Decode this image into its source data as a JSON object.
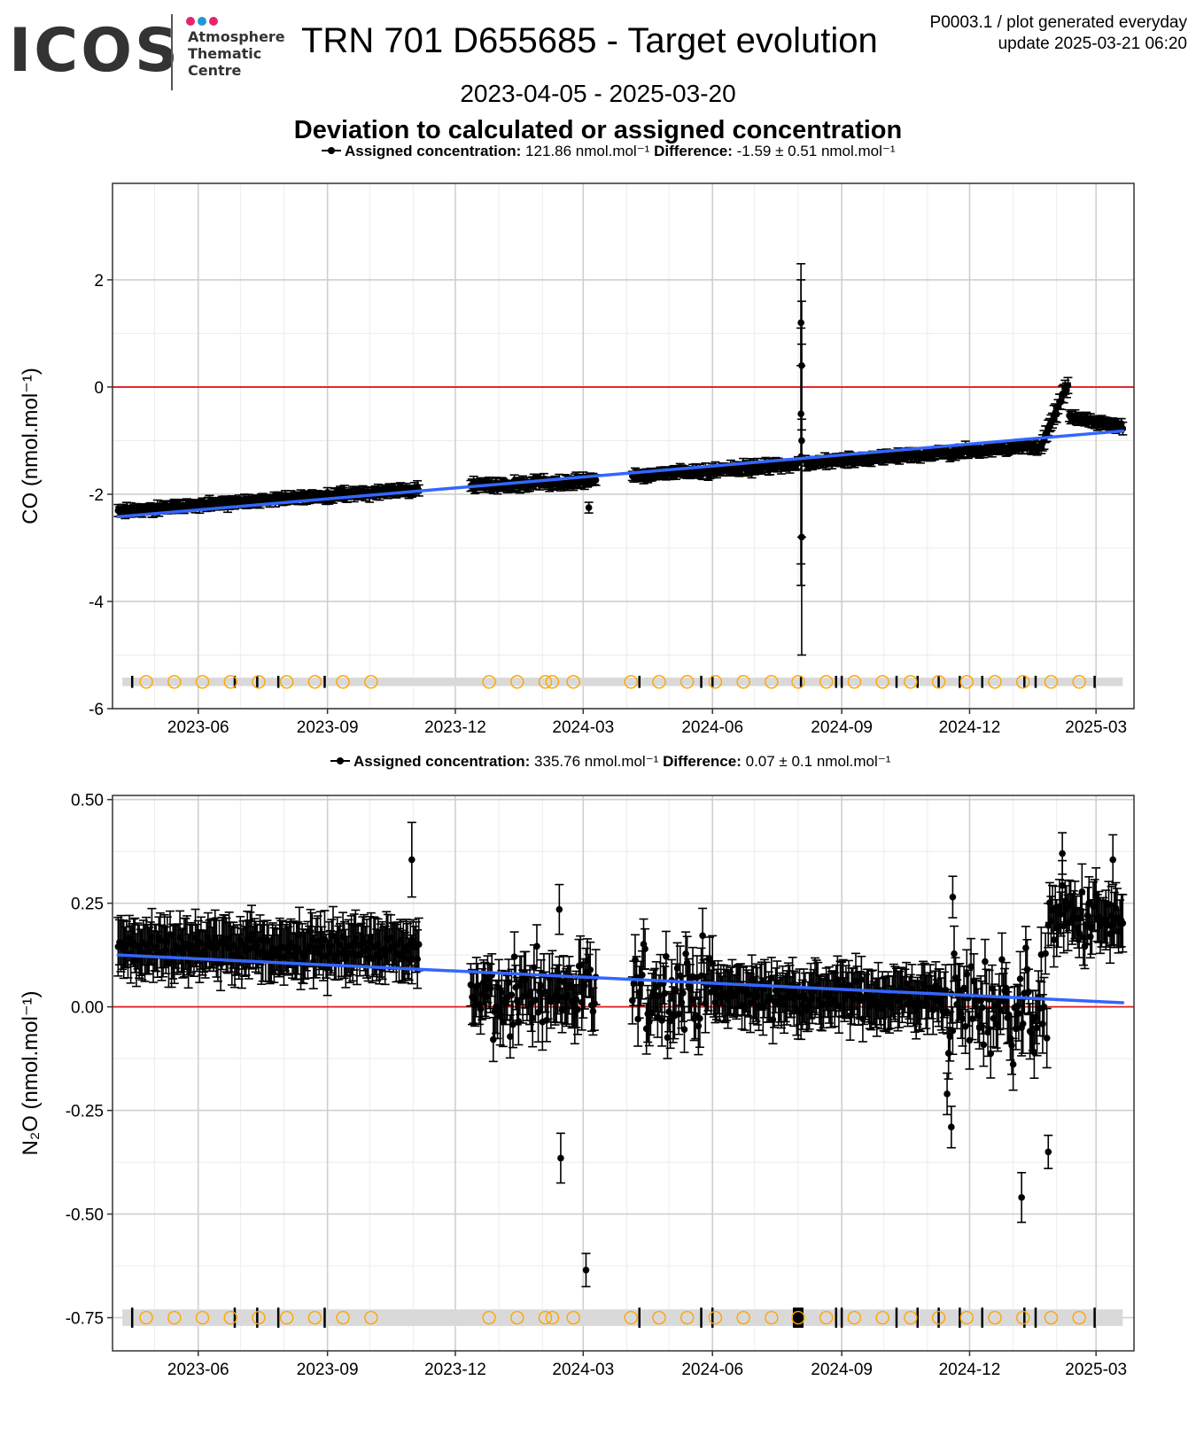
{
  "header": {
    "logo_text": "ICOS",
    "logo_sub": [
      "Atmosphere",
      "Thematic",
      "Centre"
    ],
    "logo_dot_colors": [
      "#e5256f",
      "#1c9ad6",
      "#e5256f"
    ],
    "title": "TRN 701 D655685 - Target evolution",
    "date_range": "2023-04-05 - 2025-03-20",
    "plot_info_line1": "P0003.1 / plot generated everyday",
    "plot_info_line2": "update  2025-03-21 06:20",
    "subtitle": "Deviation to calculated or assigned concentration"
  },
  "chart_data": [
    {
      "type": "scatter",
      "ylabel": "CO (nmol.mol⁻¹)",
      "legend": {
        "assigned_label": "Assigned concentration:",
        "assigned_value": "121.86 nmol.mol⁻¹",
        "difference_label": "Difference:",
        "difference_value": "-1.59 ± 0.51 nmol.mol⁻¹"
      },
      "xlim": [
        "2023-04-01",
        "2025-03-28"
      ],
      "ylim": [
        -6.0,
        3.8
      ],
      "x_ticks": [
        "2023-06",
        "2023-09",
        "2023-12",
        "2024-03",
        "2024-06",
        "2024-09",
        "2024-12",
        "2025-03"
      ],
      "y_ticks": [
        -6,
        -4,
        -2,
        0,
        2
      ],
      "y_tick_labels": [
        "-6",
        "-4",
        "-2",
        "0",
        "2"
      ],
      "reference_line": 0,
      "trend": {
        "x": [
          "2023-04-05",
          "2025-03-20"
        ],
        "y": [
          -2.42,
          -0.82
        ]
      },
      "segments": [
        {
          "start": "2023-04-05",
          "end": "2023-11-05",
          "y_start": -2.32,
          "y_end": -1.9,
          "noise": 0.05,
          "err": 0.1
        },
        {
          "start": "2023-12-12",
          "end": "2024-03-10",
          "y_start": -1.85,
          "y_end": -1.75,
          "noise": 0.07,
          "err": 0.1
        },
        {
          "start": "2024-04-05",
          "end": "2024-08-01",
          "y_start": -1.65,
          "y_end": -1.45,
          "noise": 0.06,
          "err": 0.1
        },
        {
          "start": "2024-08-06",
          "end": "2025-01-20",
          "y_start": -1.42,
          "y_end": -1.1,
          "noise": 0.05,
          "err": 0.1
        },
        {
          "start": "2025-01-21",
          "end": "2025-02-09",
          "y_start": -1.1,
          "y_end": 0.05,
          "noise": 0.06,
          "err": 0.15
        },
        {
          "start": "2025-02-10",
          "end": "2025-03-20",
          "y_start": -0.55,
          "y_end": -0.75,
          "noise": 0.05,
          "err": 0.1
        }
      ],
      "dips": [
        {
          "x": "2024-03-05",
          "y": -2.25,
          "err": 0.1
        }
      ],
      "spike": {
        "x": "2024-08-03",
        "y": [
          -0.5,
          0.4,
          -1.3,
          -2.8,
          1.2,
          -1.0
        ],
        "err": [
          2.8,
          1.2,
          2.4,
          2.2,
          0.8,
          1.8
        ]
      },
      "bar_band": [
        -5.58,
        -5.42
      ],
      "circles_x": [
        "2023-04-25",
        "2023-05-15",
        "2023-06-04",
        "2023-06-24",
        "2023-07-14",
        "2023-08-03",
        "2023-08-23",
        "2023-09-12",
        "2023-10-02",
        "2023-12-25",
        "2024-01-14",
        "2024-02-03",
        "2024-02-08",
        "2024-02-23",
        "2024-04-04",
        "2024-04-24",
        "2024-05-14",
        "2024-06-03",
        "2024-06-23",
        "2024-07-13",
        "2024-08-01",
        "2024-08-21",
        "2024-09-10",
        "2024-09-30",
        "2024-10-20",
        "2024-11-09",
        "2024-11-29",
        "2024-12-19",
        "2025-01-08",
        "2025-01-28",
        "2025-02-17"
      ],
      "ticks_x": [
        "2023-04-15",
        "2023-06-27",
        "2023-07-13",
        "2023-07-28",
        "2023-08-30",
        "2024-04-10",
        "2024-05-24",
        "2024-06-01",
        "2024-08-03",
        "2024-08-28",
        "2024-09-01",
        "2024-10-10",
        "2024-10-25",
        "2024-11-09",
        "2024-11-24",
        "2024-12-10",
        "2025-01-09",
        "2025-01-17",
        "2025-02-28"
      ]
    },
    {
      "type": "scatter",
      "ylabel": "N₂O (nmol.mol⁻¹)",
      "legend": {
        "assigned_label": "Assigned concentration:",
        "assigned_value": "335.76 nmol.mol⁻¹",
        "difference_label": "Difference:",
        "difference_value": "0.07 ± 0.1 nmol.mol⁻¹"
      },
      "xlim": [
        "2023-04-01",
        "2025-03-28"
      ],
      "ylim": [
        -0.83,
        0.51
      ],
      "x_ticks": [
        "2023-06",
        "2023-09",
        "2023-12",
        "2024-03",
        "2024-06",
        "2024-09",
        "2024-12",
        "2025-03"
      ],
      "y_ticks": [
        -0.75,
        -0.5,
        -0.25,
        0,
        0.25,
        0.5
      ],
      "y_tick_labels": [
        "-0.75",
        "-0.50",
        "-0.25",
        "0.00",
        "0.25",
        "0.50"
      ],
      "reference_line": 0,
      "trend": {
        "x": [
          "2023-04-05",
          "2025-03-20"
        ],
        "y": [
          0.125,
          0.01
        ]
      },
      "segments": [
        {
          "start": "2023-04-05",
          "end": "2023-11-05",
          "y_start": 0.14,
          "y_end": 0.14,
          "noise": 0.035,
          "err": 0.06
        },
        {
          "start": "2023-12-12",
          "end": "2024-03-10",
          "y_start": 0.03,
          "y_end": 0.03,
          "noise": 0.09,
          "err": 0.06
        },
        {
          "start": "2024-04-05",
          "end": "2024-06-01",
          "y_start": 0.03,
          "y_end": 0.05,
          "noise": 0.1,
          "err": 0.06
        },
        {
          "start": "2024-06-02",
          "end": "2024-11-15",
          "y_start": 0.03,
          "y_end": 0.02,
          "noise": 0.04,
          "err": 0.06
        },
        {
          "start": "2024-11-16",
          "end": "2025-01-25",
          "y_start": 0.0,
          "y_end": 0.0,
          "noise": 0.12,
          "err": 0.06
        },
        {
          "start": "2025-01-26",
          "end": "2025-03-20",
          "y_start": 0.22,
          "y_end": 0.2,
          "noise": 0.07,
          "err": 0.06
        }
      ],
      "outliers": [
        {
          "x": "2023-10-31",
          "y": 0.355,
          "err": 0.09
        },
        {
          "x": "2024-02-14",
          "y": -0.365,
          "err": 0.06
        },
        {
          "x": "2024-03-03",
          "y": -0.635,
          "err": 0.04
        },
        {
          "x": "2024-02-13",
          "y": 0.235,
          "err": 0.06
        },
        {
          "x": "2025-01-07",
          "y": -0.46,
          "err": 0.06
        },
        {
          "x": "2025-01-26",
          "y": -0.35,
          "err": 0.04
        },
        {
          "x": "2024-11-19",
          "y": 0.265,
          "err": 0.05
        },
        {
          "x": "2024-11-15",
          "y": -0.21,
          "err": 0.05
        },
        {
          "x": "2024-11-18",
          "y": -0.29,
          "err": 0.05
        },
        {
          "x": "2025-03-13",
          "y": 0.355,
          "err": 0.06
        },
        {
          "x": "2025-02-05",
          "y": 0.37,
          "err": 0.05
        }
      ],
      "bar_band": [
        -0.77,
        -0.73
      ],
      "circles_x": [
        "2023-04-25",
        "2023-05-15",
        "2023-06-04",
        "2023-06-24",
        "2023-07-14",
        "2023-08-03",
        "2023-08-23",
        "2023-09-12",
        "2023-10-02",
        "2023-12-25",
        "2024-01-14",
        "2024-02-03",
        "2024-02-08",
        "2024-02-23",
        "2024-04-04",
        "2024-04-24",
        "2024-05-14",
        "2024-06-03",
        "2024-06-23",
        "2024-07-13",
        "2024-08-01",
        "2024-08-21",
        "2024-09-10",
        "2024-09-30",
        "2024-10-20",
        "2024-11-09",
        "2024-11-29",
        "2024-12-19",
        "2025-01-08",
        "2025-01-28",
        "2025-02-17"
      ],
      "ticks_x": [
        "2023-04-15",
        "2023-06-27",
        "2023-07-13",
        "2023-07-28",
        "2023-08-30",
        "2024-04-10",
        "2024-05-24",
        "2024-06-01",
        "2024-07-29",
        "2024-07-30",
        "2024-07-31",
        "2024-08-01",
        "2024-08-02",
        "2024-08-03",
        "2024-08-04",
        "2024-08-28",
        "2024-09-01",
        "2024-10-10",
        "2024-10-25",
        "2024-11-09",
        "2024-11-24",
        "2024-12-10",
        "2025-01-09",
        "2025-01-17",
        "2025-02-28"
      ]
    }
  ],
  "colors": {
    "points": "#000000",
    "trend": "#3366ff",
    "reference": "#e31a1c",
    "circle": "#ffa500",
    "band": "#d9d9d9",
    "grid_major": "#cfcfcf",
    "grid_minor": "#ececec"
  }
}
